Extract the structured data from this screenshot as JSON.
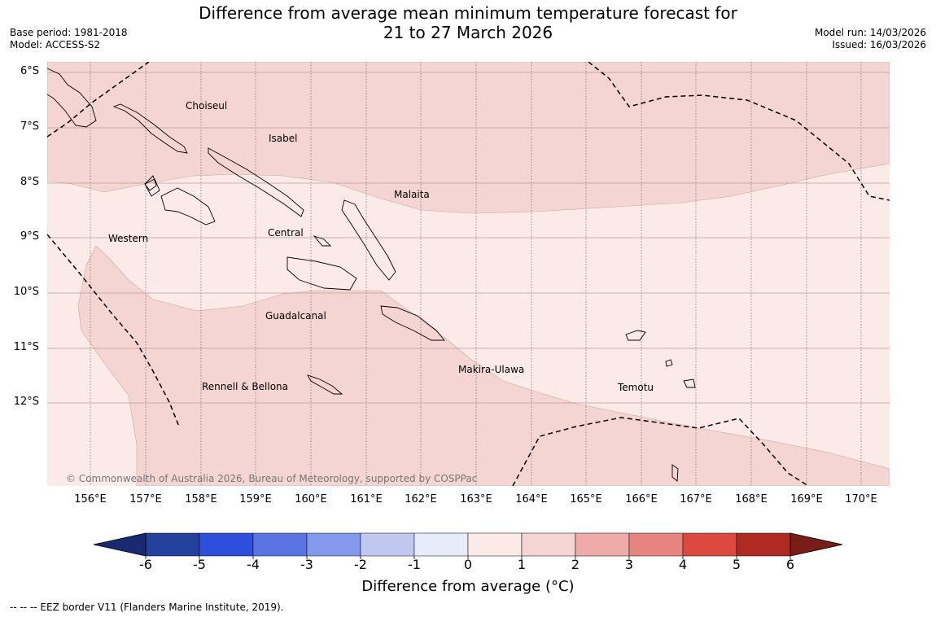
{
  "header": {
    "title_line1": "Difference from average mean minimum temperature forecast for",
    "title_line2": "21 to 27 March 2026",
    "base_period": "Base period: 1981-2018",
    "model": "Model: ACCESS-S2",
    "model_run": "Model run: 14/03/2026",
    "issued": "Issued: 16/03/2026"
  },
  "map": {
    "lat_labels": [
      "6°S",
      "7°S",
      "8°S",
      "9°S",
      "10°S",
      "11°S",
      "12°S"
    ],
    "lon_labels": [
      "156°E",
      "157°E",
      "158°E",
      "159°E",
      "160°E",
      "161°E",
      "162°E",
      "163°E",
      "164°E",
      "165°E",
      "166°E",
      "167°E",
      "168°E",
      "169°E",
      "170°E"
    ],
    "regions": {
      "choiseul": "Choiseul",
      "isabel": "Isabel",
      "malaita": "Malaita",
      "western": "Western",
      "central": "Central",
      "guadalcanal": "Guadalcanal",
      "makira": "Makira-Ulawa",
      "rennell": "Rennell & Bellona",
      "temotu": "Temotu"
    },
    "credit": "© Commonwealth of Australia 2026, Bureau of Meteorology, supported by COSPPac",
    "colors": {
      "band_0_1": "#fbeae8",
      "band_1_2": "#f5d5d2",
      "eez": "#000000",
      "grid": "#555555"
    }
  },
  "colorbar": {
    "ticks": [
      "-6",
      "-5",
      "-4",
      "-3",
      "-2",
      "-1",
      "0",
      "1",
      "2",
      "3",
      "4",
      "5",
      "6"
    ],
    "colors": [
      "#23409c",
      "#2e4fdc",
      "#5a74e4",
      "#8599ec",
      "#c0c8f2",
      "#e8ebfa",
      "#fbeae8",
      "#f5d5d2",
      "#eeaba8",
      "#e6857d",
      "#dc4a3f",
      "#b02a24"
    ],
    "under_color": "#1a2a72",
    "over_color": "#7a1d18",
    "label": "Difference from average (°C)"
  },
  "footer": {
    "legend": "--  --  -- EEZ border V11 (Flanders Marine Institute, 2019)."
  }
}
